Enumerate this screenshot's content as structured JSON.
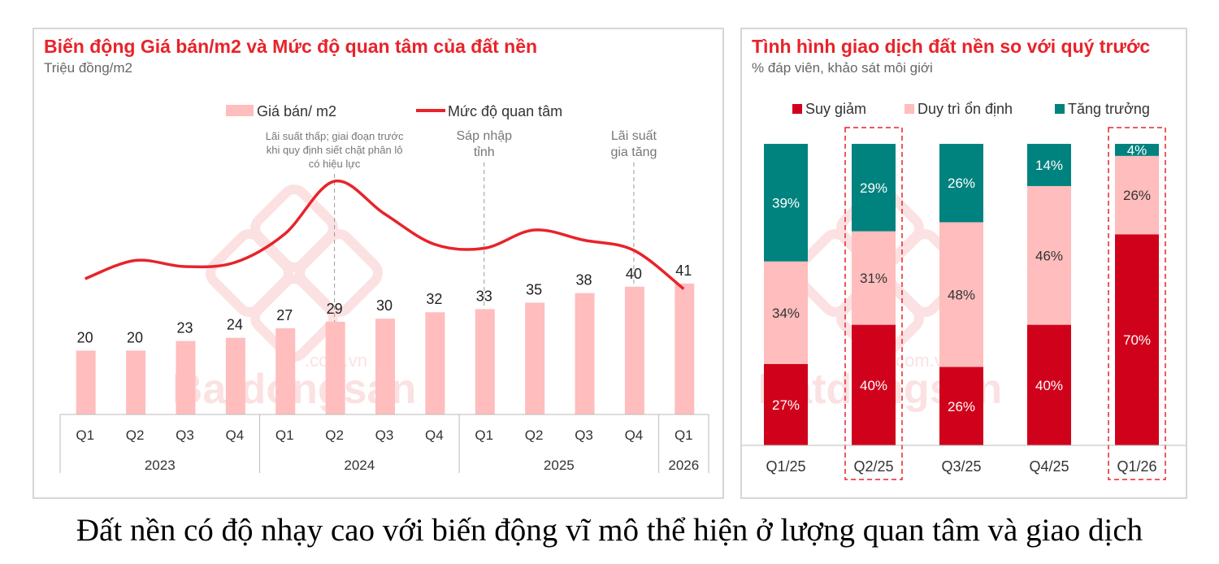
{
  "caption": "Đất nền có độ nhạy cao với biến động vĩ mô thể hiện ở lượng quan tâm và giao dịch",
  "watermark": "Batdongsan.com.vn",
  "chart_data": [
    {
      "type": "bar",
      "title": "Biến động Giá bán/m2 và Mức độ quan tâm của đất nền",
      "subtitle": "Triệu đồng/m2",
      "categories": [
        "Q1",
        "Q2",
        "Q3",
        "Q4",
        "Q1",
        "Q2",
        "Q3",
        "Q4",
        "Q1",
        "Q2",
        "Q3",
        "Q4",
        "Q1"
      ],
      "year_groups": [
        {
          "label": "2023",
          "span": 4
        },
        {
          "label": "2024",
          "span": 4
        },
        {
          "label": "2025",
          "span": 4
        },
        {
          "label": "2026",
          "span": 1
        }
      ],
      "series": [
        {
          "name": "Giá bán/ m2",
          "type": "bar",
          "color": "#ffbdbd",
          "values": [
            20,
            20,
            23,
            24,
            27,
            29,
            30,
            32,
            33,
            35,
            38,
            40,
            41
          ]
        },
        {
          "name": "Mức độ quan tâm",
          "type": "line",
          "color": "#e8232a",
          "values": [
            38,
            47,
            44,
            46,
            60,
            86,
            70,
            55,
            53,
            62,
            57,
            52,
            33
          ]
        }
      ],
      "ylim": [
        0,
        100
      ],
      "legend_position": "top",
      "annotations": [
        {
          "category_index": 5,
          "text": [
            "Lãi suất thấp; giai đoạn trước",
            "khi quy định siết chặt phân lô",
            "có hiệu lực"
          ]
        },
        {
          "category_index": 8,
          "text": [
            "Sáp nhập",
            "tỉnh"
          ]
        },
        {
          "category_index": 11,
          "text": [
            "Lãi suất",
            "gia tăng"
          ]
        }
      ]
    },
    {
      "type": "bar",
      "stacked": true,
      "title": "Tình hình giao dịch đất nền so với quý trước",
      "subtitle": "% đáp viên, khảo sát môi giới",
      "categories": [
        "Q1/25",
        "Q2/25",
        "Q3/25",
        "Q4/25",
        "Q1/26"
      ],
      "highlighted": [
        "Q2/25",
        "Q1/26"
      ],
      "series": [
        {
          "name": "Suy giảm",
          "color": "#d0021b",
          "label_color": "#ffffff",
          "values": [
            27,
            40,
            26,
            40,
            70
          ]
        },
        {
          "name": "Duy trì ổn định",
          "color": "#ffbdbd",
          "label_color": "#333333",
          "values": [
            34,
            31,
            48,
            46,
            26
          ]
        },
        {
          "name": "Tăng trưởng",
          "color": "#00827f",
          "label_color": "#ffffff",
          "values": [
            39,
            29,
            26,
            14,
            4
          ]
        }
      ],
      "ylim": [
        0,
        100
      ],
      "legend_position": "top"
    }
  ]
}
